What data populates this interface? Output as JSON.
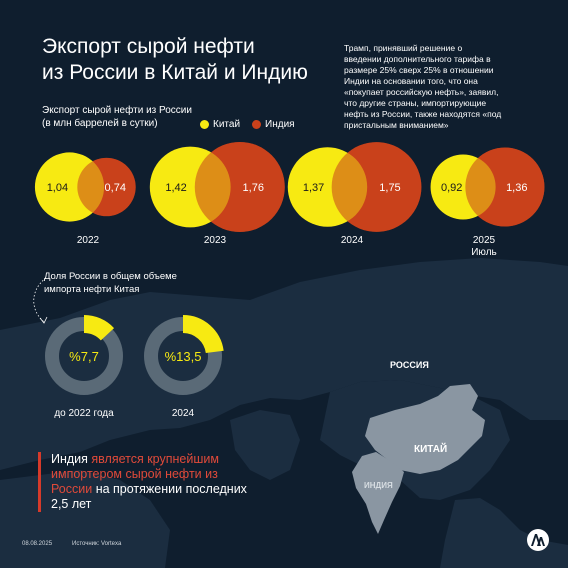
{
  "header": {
    "title_line1": "Экспорт сырой нефти",
    "title_line2": "из России в Китай и Индию"
  },
  "quote": {
    "lines": [
      "Трамп, принявший решение о",
      "введении дополнительного тарифа в",
      "размере 25% сверх 25% в отношении",
      "Индии на основании того, что она",
      "«покупает российскую нефть», заявил,",
      "что другие страны, импортирующие",
      "нефть из России, также находятся «под",
      "пристальным вниманием»"
    ]
  },
  "colors": {
    "china": "#f7ea12",
    "india": "#c9411b",
    "background": "#0f1e2e",
    "ring_track": "#5a6a77",
    "accent": "#d63a2a"
  },
  "chart_data": [
    {
      "type": "venn",
      "title_line1": "Экспорт сырой нефти из России",
      "title_line2": "(в млн баррелей в сутки)",
      "legend": [
        "Китай",
        "Индия"
      ],
      "legend_placement": "top-right",
      "series": [
        {
          "name": "Китай",
          "values": [
            1.04,
            1.42,
            1.37,
            0.92
          ],
          "labels": [
            "1,04",
            "1,42",
            "1,37",
            "0,92"
          ]
        },
        {
          "name": "Индия",
          "values": [
            0.74,
            1.76,
            1.75,
            1.36
          ],
          "labels": [
            "0,74",
            "1,76",
            "1,75",
            "1,36"
          ]
        }
      ],
      "categories": [
        "2022",
        "2023",
        "2024",
        "2025"
      ],
      "category_sublabels": [
        "",
        "",
        "",
        "Июль"
      ]
    },
    {
      "type": "donut",
      "title_line1": "Доля России в общем объеме",
      "title_line2": "импорта нефти Китая",
      "categories": [
        "до 2022 года",
        "2024"
      ],
      "values": [
        7.7,
        13.5
      ],
      "labels": [
        "%7,7",
        "%13,5"
      ]
    }
  ],
  "map": {
    "label_russia": "РОССИЯ",
    "label_china": "КИТАЙ",
    "label_india": "ИНДИЯ"
  },
  "note": {
    "part1": "Индия",
    "part2": " является крупнейшим импортером сырой нефти из России",
    "part3": " на протяжении последних 2,5 лет"
  },
  "footer": {
    "date": "08.08.2025",
    "source": "Источник: Vortexa"
  }
}
